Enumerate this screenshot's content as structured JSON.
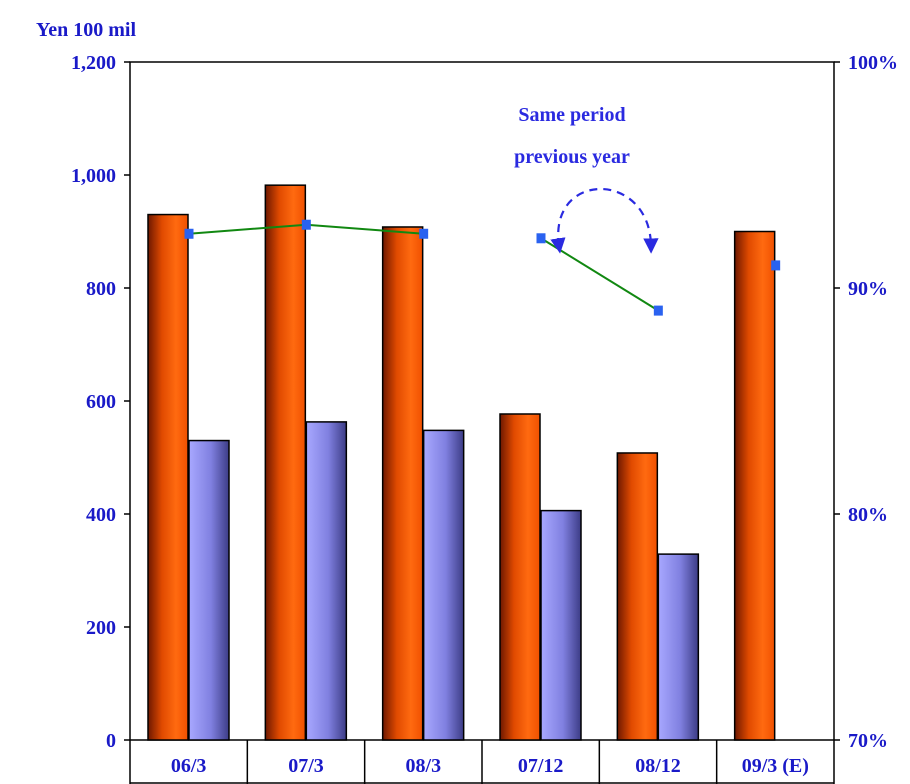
{
  "chart_data": {
    "type": "bar",
    "categories": [
      "06/3",
      "07/3",
      "08/3",
      "07/12",
      "08/12",
      "09/3 (E)"
    ],
    "series": [
      {
        "type": "bar",
        "values": [
          930,
          982,
          908,
          577,
          508,
          900
        ],
        "color": "#f25a00"
      },
      {
        "type": "bar",
        "values": [
          530,
          563,
          548,
          406,
          329,
          null
        ],
        "color": "#9a9af6"
      },
      {
        "type": "line",
        "axis": "right",
        "values": [
          92.4,
          92.8,
          92.4,
          92.2,
          89.0,
          91.0
        ],
        "connect": [
          [
            0,
            1,
            2
          ],
          [
            3,
            4
          ]
        ],
        "color": "#118811",
        "marker_color": "#2a62f0"
      }
    ],
    "y_left": {
      "label": "Yen 100 mil",
      "ylim": [
        0,
        1200
      ],
      "ticks": [
        0,
        200,
        400,
        600,
        800,
        1000,
        1200
      ],
      "tick_labels": [
        "0",
        "200",
        "400",
        "600",
        "800",
        "1,000",
        "1,200"
      ]
    },
    "y_right": {
      "ylim": [
        70,
        100
      ],
      "ticks": [
        70,
        80,
        90,
        100
      ],
      "tick_labels": [
        "70%",
        "80%",
        "90%",
        "100%"
      ]
    },
    "annotations": [
      {
        "text": "Same period",
        "line": 1
      },
      {
        "text": "previous year",
        "line": 2
      }
    ],
    "grid": false,
    "legend": "none"
  }
}
